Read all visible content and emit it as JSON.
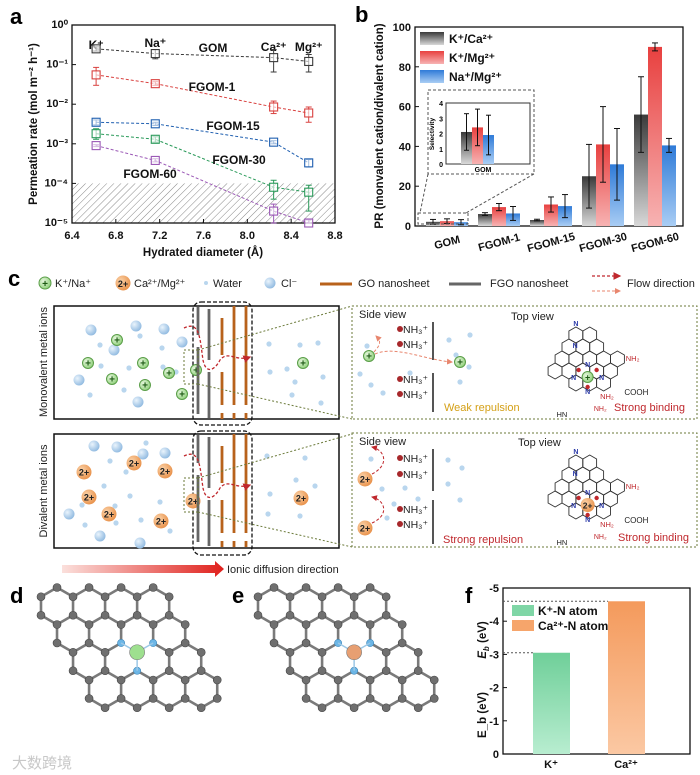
{
  "panel_labels": {
    "a": "a",
    "b": "b",
    "c": "c",
    "d": "d",
    "e": "e",
    "f": "f"
  },
  "watermark": "大数跨境",
  "chart_data": [
    {
      "panel": "a",
      "type": "line",
      "yscale": "log",
      "xlabel": "Hydrated diameter (Å)",
      "ylabel": "Permeation rate (mol m⁻² h⁻¹)",
      "xlim": [
        6.4,
        8.8
      ],
      "ylim": [
        1e-05,
        1
      ],
      "xticks": [
        6.4,
        6.8,
        7.2,
        7.6,
        8.0,
        8.4,
        8.8
      ],
      "xtick_labels": [
        "6.4",
        "6.8",
        "7.2",
        "7.6",
        "8.0",
        "8.4",
        "8.8"
      ],
      "ytick_labels": [
        "10⁻⁵",
        "10⁻⁴",
        "10⁻³",
        "10⁻²",
        "10⁻¹",
        "10⁰"
      ],
      "shaded_below": 0.0001,
      "ions": [
        {
          "label": "K⁺",
          "x": 6.62
        },
        {
          "label": "Na⁺",
          "x": 7.16
        },
        {
          "label": "Ca²⁺",
          "x": 8.24
        },
        {
          "label": "Mg²⁺",
          "x": 8.56
        }
      ],
      "x": [
        6.62,
        7.16,
        8.24,
        8.56
      ],
      "series": [
        {
          "name": "GOM",
          "color": "#3a3a3a",
          "values": [
            0.25,
            0.19,
            0.15,
            0.12
          ],
          "err_low": [
            0.22,
            0.14,
            0.065,
            0.065
          ],
          "err_high": [
            0.28,
            0.24,
            0.24,
            0.18
          ]
        },
        {
          "name": "FGOM-1",
          "color": "#d9413f",
          "values": [
            0.055,
            0.033,
            0.0085,
            0.006
          ],
          "err_low": [
            0.03,
            0.03,
            0.0058,
            0.0035
          ],
          "err_high": [
            0.085,
            0.037,
            0.012,
            0.0085
          ]
        },
        {
          "name": "FGOM-15",
          "color": "#1f5fb0",
          "values": [
            0.0035,
            0.0032,
            0.0011,
            0.00033
          ],
          "err_low": [
            0.003,
            0.0029,
            0.001,
            0.00026
          ],
          "err_high": [
            0.004,
            0.0035,
            0.0012,
            0.0004
          ]
        },
        {
          "name": "FGOM-30",
          "color": "#2a9a5a",
          "values": [
            0.0018,
            0.0013,
            8e-05,
            6e-05
          ],
          "err_low": [
            0.0013,
            0.0011,
            4e-05,
            2e-05
          ],
          "err_high": [
            0.0024,
            0.0015,
            0.00012,
            9e-05
          ]
        },
        {
          "name": "FGOM-60",
          "color": "#9b59b6",
          "values": [
            0.0009,
            0.00038,
            2e-05,
            1e-05
          ],
          "err_low": [
            0.00085,
            0.00035,
            1e-05,
            1e-05
          ],
          "err_high": [
            0.00095,
            0.00042,
            3e-05,
            1.2e-05
          ]
        }
      ]
    },
    {
      "panel": "b",
      "type": "bar",
      "ylabel": "PR (monvalent cation/divalent cation)",
      "ylim": [
        0,
        100
      ],
      "yticks": [
        0,
        20,
        40,
        60,
        80,
        100
      ],
      "categories": [
        "GOM",
        "FGOM-1",
        "FGOM-15",
        "FGOM-30",
        "FGOM-60"
      ],
      "series": [
        {
          "name": "K⁺/Ca²⁺",
          "color": "#555555",
          "values": [
            2.1,
            6.0,
            3.0,
            25,
            56
          ],
          "errors": [
            1.2,
            0.7,
            0.4,
            16,
            19
          ]
        },
        {
          "name": "K⁺/Mg²⁺",
          "color": "#e8403f",
          "values": [
            2.4,
            9.5,
            10.8,
            41,
            90
          ],
          "errors": [
            1.2,
            1.8,
            3.8,
            19,
            2
          ]
        },
        {
          "name": "Na⁺/Mg²⁺",
          "color": "#2f7bd8",
          "values": [
            1.9,
            6.3,
            10.0,
            31,
            40.5
          ],
          "errors": [
            1.3,
            3.5,
            5.8,
            18,
            3.5
          ]
        }
      ],
      "legend": "top-left",
      "inset": {
        "ylabel": "Selectivity",
        "ylim": [
          0,
          4
        ],
        "yticks": [
          0,
          1,
          2,
          3,
          4
        ],
        "category": "GOM"
      }
    },
    {
      "panel": "f",
      "type": "bar",
      "ylabel": "E_b (eV)",
      "ylabel_main": "E",
      "ylabel_sub": "b",
      "ylabel_unit": " (eV)",
      "ylim": [
        0,
        -5
      ],
      "yticks": [
        0,
        -1,
        -2,
        -3,
        -4,
        -5
      ],
      "ytick_labels": [
        "0",
        "-1",
        "-2",
        "-3",
        "-4",
        "-5"
      ],
      "categories": [
        "K⁺",
        "Ca²⁺"
      ],
      "values": [
        -3.05,
        -4.6
      ],
      "colors": [
        "#7fd6a6",
        "#f6a56b"
      ],
      "legend_entries": [
        "K⁺-N atom",
        "Ca²⁺-N atom"
      ],
      "legend": "top-left"
    }
  ],
  "panel_c": {
    "legend": {
      "monovalent": "K⁺/Na⁺",
      "divalent": "Ca²⁺/Mg²⁺",
      "water": "Water",
      "chloride": "Cl⁻",
      "go": "GO nanosheet",
      "fgo": "FGO nanosheet",
      "flow": "Flow direction"
    },
    "plus_symbol": "+",
    "divalent_symbol": "2+",
    "rows": [
      {
        "label": "Monovalent metal ions",
        "side_view": "Side view",
        "top_view": "Top view",
        "group": "NH₃⁺",
        "side_note": "Weak repulsion",
        "side_note_color": "#d4a017",
        "top_note": "Strong binding"
      },
      {
        "label": "Divalent metal ions",
        "side_view": "Side view",
        "top_view": "Top view",
        "group": "NH₃⁺",
        "side_note": "Strong repulsion",
        "side_note_color": "#c0282d",
        "top_note": "Strong binding"
      }
    ],
    "chem": {
      "nh2": "NH₂",
      "cooh": "COOH",
      "hn": "HN",
      "n": "N"
    },
    "diffusion_label": "Ionic diffusion direction"
  },
  "panel_de": {
    "ion_d_color": "#9ee08f",
    "ion_e_color": "#e79f72",
    "n_color": "#6cb6e6",
    "c_color": "#6f6f6f"
  }
}
